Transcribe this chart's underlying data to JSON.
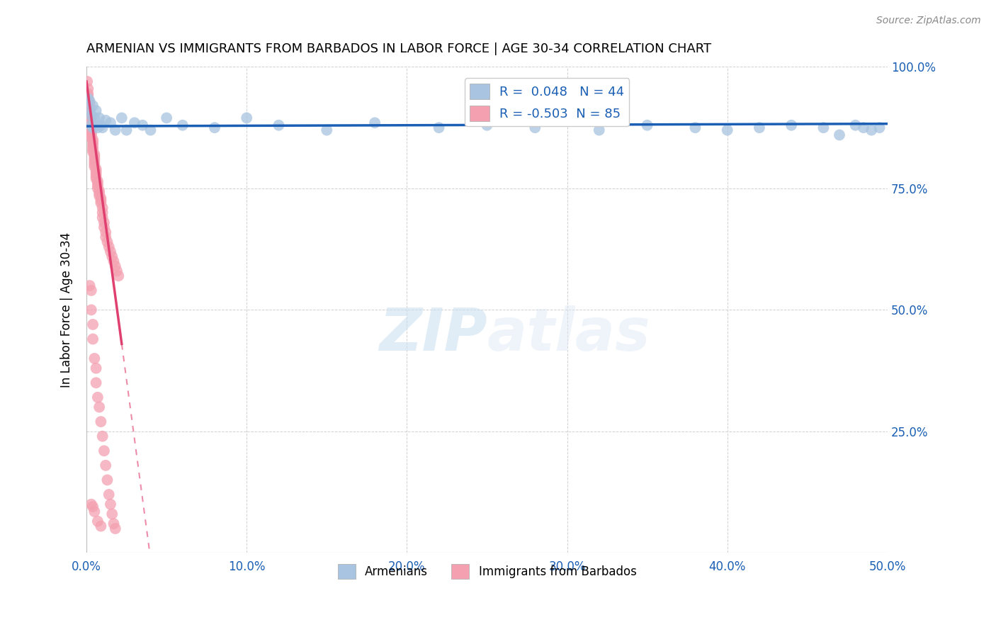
{
  "title": "ARMENIAN VS IMMIGRANTS FROM BARBADOS IN LABOR FORCE | AGE 30-34 CORRELATION CHART",
  "source": "Source: ZipAtlas.com",
  "ylabel": "In Labor Force | Age 30-34",
  "xlim": [
    0.0,
    0.5
  ],
  "ylim": [
    0.0,
    1.0
  ],
  "xtick_labels": [
    "0.0%",
    "10.0%",
    "20.0%",
    "30.0%",
    "40.0%",
    "50.0%"
  ],
  "xtick_vals": [
    0.0,
    0.1,
    0.2,
    0.3,
    0.4,
    0.5
  ],
  "ytick_vals": [
    0.25,
    0.5,
    0.75,
    1.0
  ],
  "right_ytick_labels": [
    "25.0%",
    "50.0%",
    "75.0%",
    "100.0%"
  ],
  "armenian_color": "#a8c4e0",
  "barbados_color": "#f4a0b0",
  "trendline_armenian_color": "#1a5fb4",
  "trendline_barbados_color": "#e04070",
  "R_armenian": 0.048,
  "N_armenian": 44,
  "R_barbados": -0.503,
  "N_barbados": 85,
  "legend_label_armenian": "Armenians",
  "legend_label_barbados": "Immigrants from Barbados",
  "watermark_zip": "ZIP",
  "watermark_atlas": "atlas",
  "armenian_x": [
    0.001,
    0.002,
    0.002,
    0.003,
    0.003,
    0.004,
    0.004,
    0.005,
    0.005,
    0.006,
    0.007,
    0.008,
    0.009,
    0.01,
    0.012,
    0.015,
    0.018,
    0.022,
    0.025,
    0.03,
    0.035,
    0.04,
    0.05,
    0.06,
    0.08,
    0.1,
    0.12,
    0.15,
    0.18,
    0.22,
    0.25,
    0.28,
    0.32,
    0.35,
    0.38,
    0.4,
    0.42,
    0.44,
    0.46,
    0.47,
    0.48,
    0.485,
    0.49,
    0.495
  ],
  "armenian_y": [
    0.935,
    0.91,
    0.93,
    0.88,
    0.9,
    0.92,
    0.875,
    0.895,
    0.88,
    0.91,
    0.875,
    0.895,
    0.88,
    0.875,
    0.89,
    0.885,
    0.87,
    0.895,
    0.87,
    0.885,
    0.88,
    0.87,
    0.895,
    0.88,
    0.875,
    0.895,
    0.88,
    0.87,
    0.885,
    0.875,
    0.88,
    0.875,
    0.87,
    0.88,
    0.875,
    0.87,
    0.875,
    0.88,
    0.875,
    0.86,
    0.88,
    0.875,
    0.87,
    0.875
  ],
  "barbados_x": [
    0.0005,
    0.001,
    0.001,
    0.001,
    0.0015,
    0.002,
    0.002,
    0.002,
    0.002,
    0.0025,
    0.003,
    0.003,
    0.003,
    0.003,
    0.003,
    0.003,
    0.003,
    0.003,
    0.004,
    0.004,
    0.004,
    0.004,
    0.004,
    0.004,
    0.005,
    0.005,
    0.005,
    0.005,
    0.005,
    0.005,
    0.006,
    0.006,
    0.006,
    0.006,
    0.006,
    0.007,
    0.007,
    0.007,
    0.007,
    0.008,
    0.008,
    0.008,
    0.009,
    0.009,
    0.009,
    0.01,
    0.01,
    0.01,
    0.011,
    0.011,
    0.012,
    0.012,
    0.013,
    0.014,
    0.015,
    0.016,
    0.017,
    0.018,
    0.019,
    0.02,
    0.002,
    0.003,
    0.003,
    0.004,
    0.004,
    0.005,
    0.006,
    0.006,
    0.007,
    0.008,
    0.009,
    0.01,
    0.011,
    0.012,
    0.013,
    0.014,
    0.015,
    0.016,
    0.017,
    0.018,
    0.003,
    0.004,
    0.005,
    0.007,
    0.009
  ],
  "barbados_y": [
    0.97,
    0.955,
    0.945,
    0.94,
    0.93,
    0.925,
    0.915,
    0.91,
    0.905,
    0.9,
    0.895,
    0.885,
    0.88,
    0.875,
    0.87,
    0.865,
    0.86,
    0.855,
    0.85,
    0.845,
    0.84,
    0.835,
    0.83,
    0.825,
    0.82,
    0.815,
    0.81,
    0.805,
    0.8,
    0.795,
    0.79,
    0.785,
    0.78,
    0.775,
    0.77,
    0.765,
    0.76,
    0.755,
    0.75,
    0.745,
    0.74,
    0.735,
    0.73,
    0.725,
    0.72,
    0.71,
    0.7,
    0.69,
    0.68,
    0.67,
    0.66,
    0.65,
    0.64,
    0.63,
    0.62,
    0.61,
    0.6,
    0.59,
    0.58,
    0.57,
    0.55,
    0.54,
    0.5,
    0.47,
    0.44,
    0.4,
    0.38,
    0.35,
    0.32,
    0.3,
    0.27,
    0.24,
    0.21,
    0.18,
    0.15,
    0.12,
    0.1,
    0.08,
    0.06,
    0.05,
    0.1,
    0.095,
    0.085,
    0.065,
    0.055
  ],
  "barbados_trendline_x0": 0.0,
  "barbados_trendline_y0": 0.97,
  "barbados_trendline_x1": 0.022,
  "barbados_trendline_y1": 0.43,
  "barbados_trendline_xdash0": 0.022,
  "barbados_trendline_xdash1": 0.5,
  "armenian_trendline_x0": 0.0,
  "armenian_trendline_y0": 0.878,
  "armenian_trendline_x1": 0.5,
  "armenian_trendline_y1": 0.883
}
